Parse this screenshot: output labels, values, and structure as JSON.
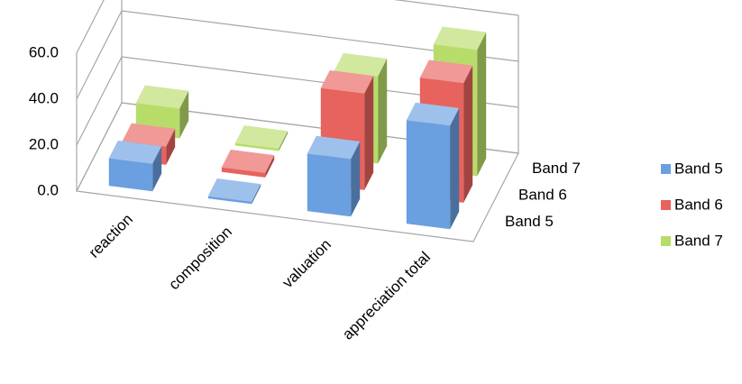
{
  "chart_data": {
    "type": "bar3d",
    "categories": [
      "reaction",
      "composition",
      "valuation",
      "appreciation total"
    ],
    "series": [
      {
        "name": "Band 5",
        "color": "#6a9fe0",
        "values": [
          12,
          1,
          25,
          45
        ]
      },
      {
        "name": "Band 6",
        "color": "#e8625e",
        "values": [
          8,
          2,
          42,
          52
        ]
      },
      {
        "name": "Band 7",
        "color": "#b8dc6a",
        "values": [
          13,
          1,
          38,
          55
        ]
      }
    ],
    "ylim": [
      0,
      60
    ],
    "yticks": [
      {
        "value": 0,
        "label": "0.0"
      },
      {
        "value": 20,
        "label": "20.0"
      },
      {
        "value": 40,
        "label": "40.0"
      },
      {
        "value": 60,
        "label": "60.0"
      }
    ],
    "grid": true,
    "legend": "right"
  }
}
